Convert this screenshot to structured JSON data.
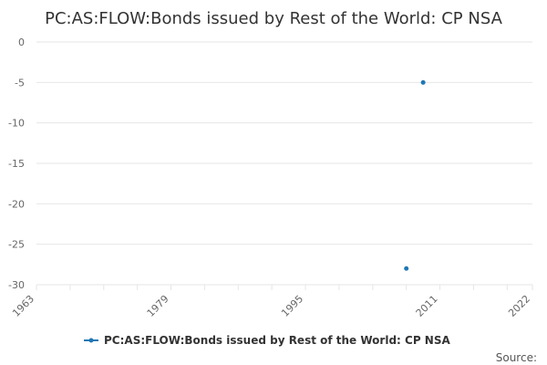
{
  "chart_data": {
    "type": "scatter",
    "title": "PC:AS:FLOW:Bonds issued by Rest of the World: CP NSA",
    "xlabel": "",
    "ylabel": "",
    "xlim": [
      1963,
      2022
    ],
    "ylim": [
      -30,
      0
    ],
    "x_ticks": [
      "1963",
      "1979",
      "1995",
      "2011",
      "2022"
    ],
    "y_ticks": [
      "0",
      "-5",
      "-10",
      "-15",
      "-20",
      "-25",
      "-30"
    ],
    "grid": true,
    "legend": "bottom-center",
    "series": [
      {
        "name": "PC:AS:FLOW:Bonds issued by Rest of the World: CP NSA",
        "color": "#1f77b4",
        "points": [
          {
            "x": 2007,
            "y": -28
          },
          {
            "x": 2009,
            "y": -5
          }
        ]
      }
    ]
  },
  "credit": "Source:"
}
